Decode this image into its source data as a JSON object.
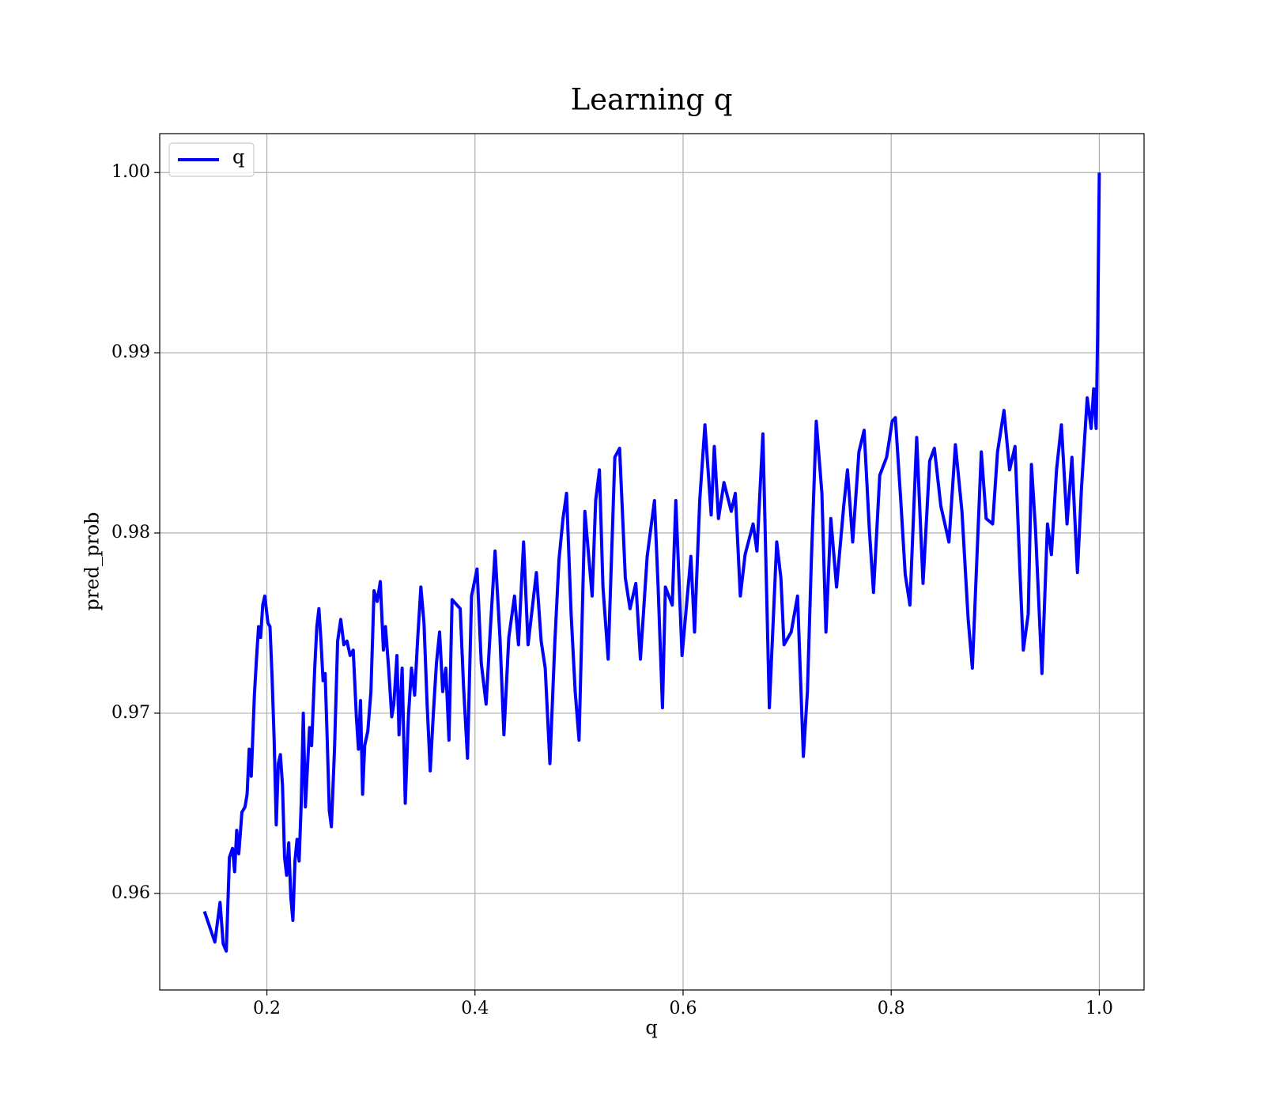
{
  "chart_data": {
    "type": "line",
    "title": "Learning q",
    "x_label": "q",
    "y_label": "pred_prob",
    "xlim": [
      0.097,
      1.043
    ],
    "xticks": [
      0.2,
      0.4,
      0.6,
      0.8,
      {
        "value": 1.0,
        "label": "1.0"
      }
    ],
    "ylim": [
      0.95464,
      1.00216
    ],
    "yticks": [
      0.96,
      0.97,
      0.98,
      0.99,
      {
        "value": 1.0,
        "label": "1.00"
      }
    ],
    "grid": true,
    "legend": "upper left",
    "x": [
      0.14,
      0.15,
      0.155,
      0.158,
      0.161,
      0.164,
      0.167,
      0.169,
      0.171,
      0.173,
      0.176,
      0.179,
      0.181,
      0.183,
      0.185,
      0.188,
      0.19,
      0.192,
      0.194,
      0.196,
      0.198,
      0.201,
      0.203,
      0.205,
      0.207,
      0.209,
      0.211,
      0.213,
      0.215,
      0.217,
      0.219,
      0.221,
      0.223,
      0.225,
      0.227,
      0.229,
      0.231,
      0.233,
      0.235,
      0.237,
      0.239,
      0.241,
      0.243,
      0.246,
      0.248,
      0.25,
      0.252,
      0.254,
      0.256,
      0.258,
      0.26,
      0.262,
      0.265,
      0.268,
      0.271,
      0.274,
      0.277,
      0.28,
      0.283,
      0.286,
      0.288,
      0.29,
      0.292,
      0.294,
      0.297,
      0.3,
      0.303,
      0.306,
      0.309,
      0.312,
      0.314,
      0.317,
      0.32,
      0.322,
      0.325,
      0.327,
      0.33,
      0.333,
      0.336,
      0.339,
      0.342,
      0.345,
      0.348,
      0.351,
      0.354,
      0.357,
      0.36,
      0.363,
      0.366,
      0.369,
      0.372,
      0.375,
      0.378,
      0.3858,
      0.389,
      0.3928,
      0.3967,
      0.402,
      0.406,
      0.4107,
      0.4146,
      0.4193,
      0.424,
      0.4278,
      0.4325,
      0.438,
      0.4418,
      0.4467,
      0.451,
      0.459,
      0.4636,
      0.4675,
      0.472,
      0.4768,
      0.4807,
      0.4846,
      0.488,
      0.4924,
      0.4963,
      0.5,
      0.5056,
      0.5126,
      0.516,
      0.5196,
      0.523,
      0.528,
      0.5344,
      0.539,
      0.5445,
      0.549,
      0.5546,
      0.559,
      0.5655,
      0.5725,
      0.576,
      0.5802,
      0.583,
      0.5896,
      0.593,
      0.599,
      0.6075,
      0.611,
      0.616,
      0.621,
      0.627,
      0.63,
      0.634,
      0.6393,
      0.6463,
      0.6502,
      0.655,
      0.6596,
      0.6673,
      0.671,
      0.6767,
      0.6829,
      0.69,
      0.694,
      0.697,
      0.7039,
      0.71,
      0.7156,
      0.7195,
      0.7233,
      0.728,
      0.7334,
      0.7373,
      0.742,
      0.7475,
      0.7544,
      0.758,
      0.763,
      0.769,
      0.774,
      0.779,
      0.783,
      0.789,
      0.7956,
      0.801,
      0.804,
      0.809,
      0.8135,
      0.818,
      0.8245,
      0.8306,
      0.837,
      0.8415,
      0.8477,
      0.8555,
      0.8617,
      0.868,
      0.874,
      0.878,
      0.8866,
      0.8913,
      0.8975,
      0.9022,
      0.9084,
      0.9138,
      0.919,
      0.924,
      0.927,
      0.9317,
      0.9348,
      0.9387,
      0.9449,
      0.9502,
      0.954,
      0.9589,
      0.9636,
      0.969,
      0.9737,
      0.979,
      0.9829,
      0.9884,
      0.9922,
      0.9946,
      0.997,
      0.9984,
      1.0
    ],
    "series": [
      {
        "name": "q",
        "color": "#0000ff",
        "values": [
          0.959,
          0.9573,
          0.9595,
          0.9572,
          0.9568,
          0.962,
          0.9625,
          0.9612,
          0.9635,
          0.9622,
          0.9645,
          0.9648,
          0.9655,
          0.968,
          0.9665,
          0.971,
          0.973,
          0.9748,
          0.9742,
          0.976,
          0.9765,
          0.975,
          0.9748,
          0.972,
          0.9685,
          0.9638,
          0.9672,
          0.9677,
          0.966,
          0.962,
          0.961,
          0.9628,
          0.9598,
          0.9585,
          0.9618,
          0.963,
          0.9618,
          0.965,
          0.97,
          0.9648,
          0.967,
          0.9692,
          0.9682,
          0.9725,
          0.9748,
          0.9758,
          0.974,
          0.9718,
          0.9722,
          0.9685,
          0.9646,
          0.9637,
          0.968,
          0.974,
          0.9752,
          0.9738,
          0.974,
          0.9732,
          0.9735,
          0.9698,
          0.968,
          0.9707,
          0.9655,
          0.9682,
          0.969,
          0.9712,
          0.9768,
          0.9762,
          0.9773,
          0.9735,
          0.9748,
          0.9725,
          0.9698,
          0.9705,
          0.9732,
          0.9688,
          0.9725,
          0.965,
          0.9698,
          0.9725,
          0.971,
          0.9742,
          0.977,
          0.975,
          0.9705,
          0.9668,
          0.97,
          0.9728,
          0.9745,
          0.9712,
          0.9725,
          0.9685,
          0.9763,
          0.9758,
          0.9715,
          0.9675,
          0.9765,
          0.978,
          0.9728,
          0.9705,
          0.9745,
          0.979,
          0.9742,
          0.9688,
          0.9742,
          0.9765,
          0.9738,
          0.9795,
          0.9738,
          0.9778,
          0.974,
          0.9725,
          0.9672,
          0.974,
          0.9785,
          0.9808,
          0.9822,
          0.9755,
          0.9712,
          0.9685,
          0.9812,
          0.9765,
          0.9818,
          0.9835,
          0.977,
          0.973,
          0.9842,
          0.9847,
          0.9775,
          0.9758,
          0.9772,
          0.973,
          0.9787,
          0.9818,
          0.977,
          0.9703,
          0.977,
          0.976,
          0.9818,
          0.9732,
          0.9787,
          0.9745,
          0.9818,
          0.986,
          0.981,
          0.9848,
          0.9808,
          0.9828,
          0.9812,
          0.9822,
          0.9765,
          0.9788,
          0.9805,
          0.979,
          0.9855,
          0.9703,
          0.9795,
          0.9775,
          0.9738,
          0.9745,
          0.9765,
          0.9676,
          0.9712,
          0.9785,
          0.9862,
          0.9822,
          0.9745,
          0.9808,
          0.977,
          0.9815,
          0.9835,
          0.9795,
          0.9845,
          0.9857,
          0.9802,
          0.9767,
          0.9832,
          0.9842,
          0.9862,
          0.9864,
          0.982,
          0.9777,
          0.976,
          0.9853,
          0.9772,
          0.984,
          0.9847,
          0.9815,
          0.9795,
          0.9849,
          0.9812,
          0.9752,
          0.9725,
          0.9845,
          0.9808,
          0.9805,
          0.9845,
          0.9868,
          0.9835,
          0.9848,
          0.9775,
          0.9735,
          0.9755,
          0.9838,
          0.9802,
          0.9722,
          0.9805,
          0.9788,
          0.9835,
          0.986,
          0.9805,
          0.9842,
          0.9778,
          0.9825,
          0.9875,
          0.9858,
          0.988,
          0.9858,
          0.991,
          1.0
        ]
      }
    ]
  }
}
